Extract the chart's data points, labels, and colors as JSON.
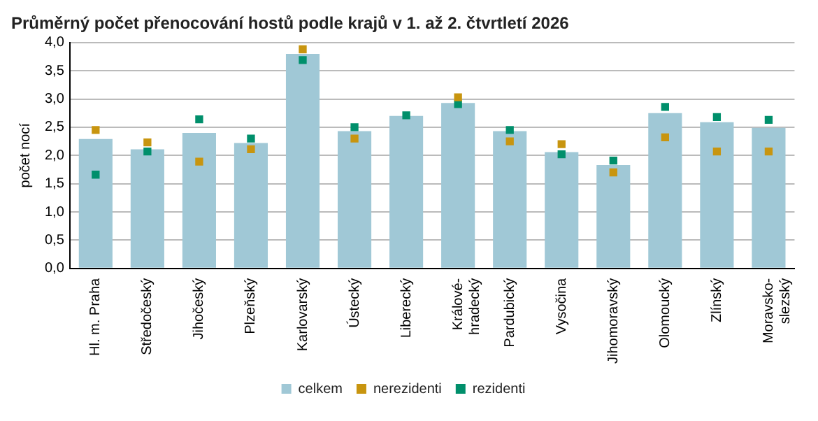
{
  "chart_data": {
    "type": "bar",
    "title": "Průměrný počet přenocování hostů podle krajů v 1. až 2. čtvrtletí 2026",
    "ylabel": "počet nocí",
    "categories": [
      "Hl. m. Praha",
      "Středočeský",
      "Jihočeský",
      "Plzeňský",
      "Karlovarský",
      "Ústecký",
      "Liberecký",
      "Králové-hradecký",
      "Pardubický",
      "Vysočina",
      "Jihomoravský",
      "Olomoucký",
      "Zlínský",
      "Moravsko-slezský"
    ],
    "series": [
      {
        "name": "celkem",
        "type": "bar",
        "color": "#a0c8d6",
        "values": [
          2.29,
          2.11,
          2.4,
          2.22,
          3.8,
          2.43,
          2.7,
          2.93,
          2.43,
          2.06,
          1.83,
          2.75,
          2.59,
          2.49
        ]
      },
      {
        "name": "nerezidenti",
        "type": "scatter",
        "marker": "square",
        "color": "#c8950f",
        "values": [
          2.45,
          2.23,
          1.89,
          2.11,
          3.88,
          2.3,
          null,
          3.03,
          2.25,
          2.2,
          1.7,
          2.32,
          2.07,
          2.07
        ]
      },
      {
        "name": "rezidenti",
        "type": "scatter",
        "marker": "square",
        "color": "#008f6b",
        "values": [
          1.66,
          2.07,
          2.64,
          2.3,
          3.69,
          2.5,
          2.71,
          2.91,
          2.45,
          2.02,
          1.91,
          2.86,
          2.68,
          2.63
        ]
      }
    ],
    "ylim": [
      0,
      4
    ],
    "yticks": [
      {
        "value": 0,
        "label": "0,0"
      },
      {
        "value": 0.5,
        "label": "0,5"
      },
      {
        "value": 1,
        "label": "1,0"
      },
      {
        "value": 1.5,
        "label": "1,5"
      },
      {
        "value": 2,
        "label": "2,0"
      },
      {
        "value": 2.5,
        "label": "2,5"
      },
      {
        "value": 3,
        "label": "3,0"
      },
      {
        "value": 3.5,
        "label": "3,5"
      },
      {
        "value": 4,
        "label": "4,0"
      }
    ],
    "grid": "y",
    "legend": "bottom"
  }
}
